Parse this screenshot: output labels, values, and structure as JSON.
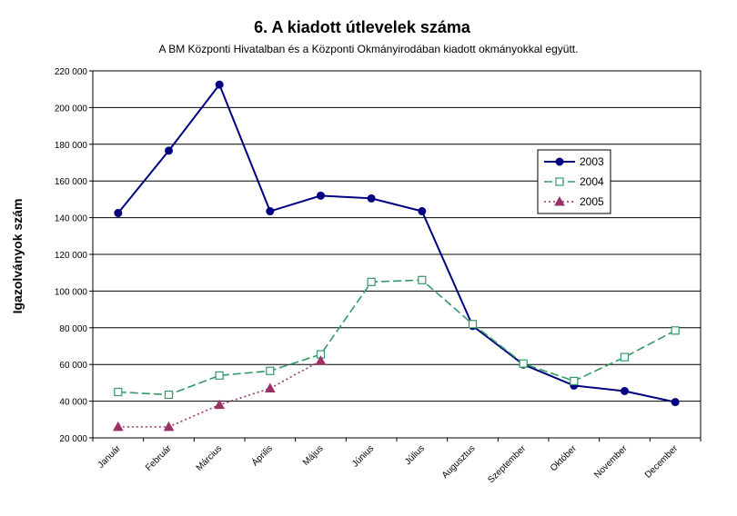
{
  "chart_data": {
    "type": "line",
    "title": "6. A  kiadott útlevelek száma",
    "subtitle": "A BM Központi Hivatalban és a Központi Okmányirodában kiadott okmányokkal együtt.",
    "ylabel": "Igazolványok szám",
    "xlabel": "",
    "categories": [
      "Január",
      "Február",
      "Március",
      "Április",
      "Május",
      "Június",
      "Július",
      "Augusztus",
      "Szeptember",
      "Október",
      "November",
      "December"
    ],
    "ylim": [
      20000,
      220000
    ],
    "yticks": [
      20000,
      40000,
      60000,
      80000,
      100000,
      120000,
      140000,
      160000,
      180000,
      200000,
      220000
    ],
    "ytick_labels": [
      "20 000",
      "40 000",
      "60 000",
      "80 000",
      "100 000",
      "120 000",
      "140 000",
      "160 000",
      "180 000",
      "200 000",
      "220 000"
    ],
    "grid": true,
    "legend_position": "right",
    "series": [
      {
        "name": "2003",
        "color": "#000080",
        "marker": "circle",
        "line_style": "solid",
        "values": [
          142500,
          176500,
          212500,
          143500,
          152000,
          150500,
          143500,
          81000,
          60000,
          48500,
          45500,
          39500
        ]
      },
      {
        "name": "2004",
        "color": "#339966",
        "marker": "square",
        "line_style": "dashed",
        "values": [
          45000,
          43500,
          54000,
          56500,
          65500,
          105000,
          106000,
          82000,
          60500,
          51000,
          64000,
          78500
        ]
      },
      {
        "name": "2005",
        "color": "#993366",
        "marker": "triangle",
        "line_style": "dotted",
        "values": [
          26000,
          26000,
          38000,
          47000,
          62000,
          null,
          null,
          null,
          null,
          null,
          null,
          null
        ]
      }
    ]
  }
}
